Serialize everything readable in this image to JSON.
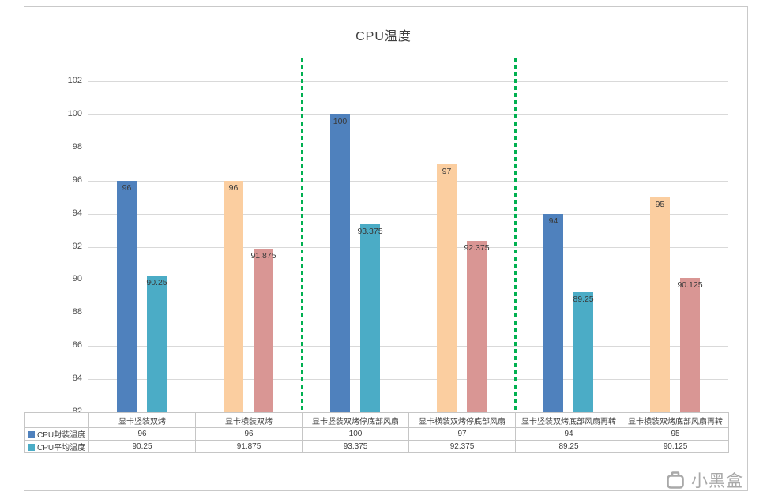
{
  "chart_data": {
    "type": "bar",
    "title": "CPU温度",
    "categories": [
      "显卡竖装双烤",
      "显卡横装双烤",
      "显卡竖装双烤停底部风扇",
      "显卡横装双烤停底部风扇",
      "显卡竖装双烤底部风扇再转",
      "显卡横装双烤底部风扇再转"
    ],
    "series": [
      {
        "name": "CPU封装温度",
        "values": [
          96,
          96,
          100,
          97,
          94,
          95
        ],
        "labels": [
          "96",
          "96",
          "100",
          "97",
          "94",
          "95"
        ],
        "colors": [
          "#4F81BD",
          "#FBCEA0",
          "#4F81BD",
          "#FBCEA0",
          "#4F81BD",
          "#FBCEA0"
        ],
        "legend_color": "#4F81BD"
      },
      {
        "name": "CPU平均温度",
        "values": [
          90.25,
          91.875,
          93.375,
          92.375,
          89.25,
          90.125
        ],
        "labels": [
          "90.25",
          "91.875",
          "93.375",
          "92.375",
          "89.25",
          "90.125"
        ],
        "colors": [
          "#4BACC6",
          "#D99694",
          "#4BACC6",
          "#D99694",
          "#4BACC6",
          "#D99694"
        ],
        "legend_color": "#4BACC6"
      }
    ],
    "ylim": [
      82,
      102
    ],
    "ytick_step": 2,
    "grid": true,
    "legend_position": "table-left",
    "separators_after": [
      2,
      4
    ],
    "separator_color": "#00B050",
    "gridline_color": "#d9d9d9"
  },
  "watermark": {
    "text": "小黑盒"
  }
}
